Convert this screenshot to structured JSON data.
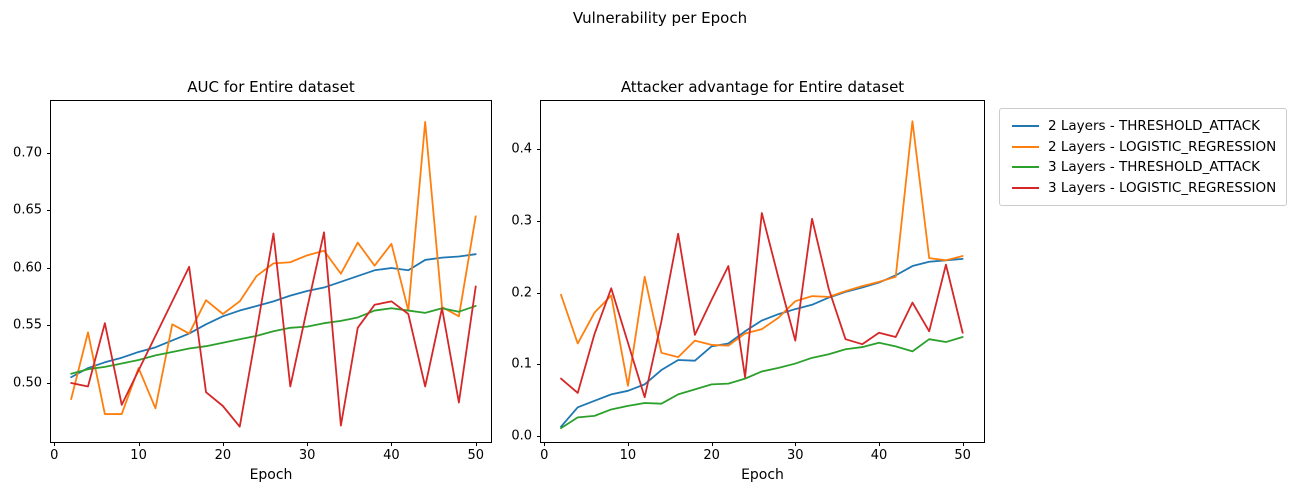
{
  "suptitle": "Vulnerability per Epoch",
  "legend": {
    "entries": [
      {
        "label": "2 Layers - THRESHOLD_ATTACK",
        "color": "#1f77b4"
      },
      {
        "label": "2 Layers - LOGISTIC_REGRESSION",
        "color": "#ff7f0e"
      },
      {
        "label": "3 Layers - THRESHOLD_ATTACK",
        "color": "#2ca02c"
      },
      {
        "label": "3 Layers - LOGISTIC_REGRESSION",
        "color": "#d62728"
      }
    ]
  },
  "chart_data": [
    {
      "type": "line",
      "title": "AUC for Entire dataset",
      "xlabel": "Epoch",
      "grid": false,
      "legend_position": "outside-right-of-figure",
      "x": [
        2,
        4,
        6,
        8,
        10,
        12,
        14,
        16,
        18,
        20,
        22,
        24,
        26,
        28,
        30,
        32,
        34,
        36,
        38,
        40,
        42,
        44,
        46,
        48,
        50
      ],
      "xlim": [
        -0.39,
        51.81
      ],
      "ylim": [
        0.4487,
        0.7452
      ],
      "xticks": [
        0,
        10,
        20,
        30,
        40,
        50
      ],
      "xtick_labels": [
        "0",
        "10",
        "20",
        "30",
        "40",
        "50"
      ],
      "yticks": [
        0.5,
        0.55,
        0.6,
        0.65,
        0.7
      ],
      "ytick_labels": [
        "0.50",
        "0.55",
        "0.60",
        "0.65",
        "0.70"
      ],
      "series": [
        {
          "name": "2 Layers - THRESHOLD_ATTACK",
          "color": "#1f77b4",
          "values": [
            0.505,
            0.513,
            0.518,
            0.522,
            0.527,
            0.531,
            0.537,
            0.543,
            0.551,
            0.558,
            0.563,
            0.567,
            0.571,
            0.576,
            0.58,
            0.583,
            0.588,
            0.593,
            0.598,
            0.6,
            0.598,
            0.607,
            0.609,
            0.61,
            0.612
          ]
        },
        {
          "name": "2 Layers - LOGISTIC_REGRESSION",
          "color": "#ff7f0e",
          "values": [
            0.486,
            0.544,
            0.473,
            0.473,
            0.513,
            0.478,
            0.551,
            0.543,
            0.572,
            0.56,
            0.571,
            0.593,
            0.604,
            0.605,
            0.611,
            0.615,
            0.595,
            0.622,
            0.602,
            0.621,
            0.563,
            0.727,
            0.566,
            0.558,
            0.645
          ]
        },
        {
          "name": "3 Layers - THRESHOLD_ATTACK",
          "color": "#2ca02c",
          "values": [
            0.508,
            0.512,
            0.514,
            0.517,
            0.52,
            0.524,
            0.527,
            0.53,
            0.532,
            0.535,
            0.538,
            0.541,
            0.545,
            0.548,
            0.549,
            0.552,
            0.554,
            0.557,
            0.563,
            0.565,
            0.563,
            0.561,
            0.565,
            0.562,
            0.567
          ]
        },
        {
          "name": "3 Layers - LOGISTIC_REGRESSION",
          "color": "#d62728",
          "values": [
            0.5,
            0.497,
            0.552,
            0.481,
            0.511,
            0.541,
            0.571,
            0.601,
            0.492,
            0.48,
            0.462,
            0.545,
            0.63,
            0.497,
            0.565,
            0.631,
            0.463,
            0.548,
            0.568,
            0.571,
            0.56,
            0.497,
            0.565,
            0.483,
            0.584
          ]
        }
      ]
    },
    {
      "type": "line",
      "title": "Attacker advantage for Entire dataset",
      "xlabel": "Epoch",
      "grid": false,
      "x": [
        2,
        4,
        6,
        8,
        10,
        12,
        14,
        16,
        18,
        20,
        22,
        24,
        26,
        28,
        30,
        32,
        34,
        36,
        38,
        40,
        42,
        44,
        46,
        48,
        50
      ],
      "xlim": [
        -0.39,
        52.55
      ],
      "ylim": [
        -0.0084,
        0.4672
      ],
      "xticks": [
        0,
        10,
        20,
        30,
        40,
        50
      ],
      "xtick_labels": [
        "0",
        "10",
        "20",
        "30",
        "40",
        "50"
      ],
      "yticks": [
        0.0,
        0.1,
        0.2,
        0.3,
        0.4
      ],
      "ytick_labels": [
        "0.0",
        "0.1",
        "0.2",
        "0.3",
        "0.4"
      ],
      "series": [
        {
          "name": "2 Layers - THRESHOLD_ATTACK",
          "color": "#1f77b4",
          "values": [
            0.013,
            0.04,
            0.049,
            0.058,
            0.063,
            0.072,
            0.092,
            0.106,
            0.105,
            0.125,
            0.129,
            0.146,
            0.161,
            0.17,
            0.177,
            0.183,
            0.193,
            0.201,
            0.207,
            0.214,
            0.224,
            0.237,
            0.243,
            0.245,
            0.247
          ]
        },
        {
          "name": "2 Layers - LOGISTIC_REGRESSION",
          "color": "#ff7f0e",
          "values": [
            0.197,
            0.129,
            0.172,
            0.196,
            0.07,
            0.222,
            0.116,
            0.11,
            0.133,
            0.127,
            0.126,
            0.143,
            0.149,
            0.165,
            0.188,
            0.195,
            0.194,
            0.202,
            0.209,
            0.215,
            0.222,
            0.439,
            0.248,
            0.245,
            0.251
          ]
        },
        {
          "name": "3 Layers - THRESHOLD_ATTACK",
          "color": "#2ca02c",
          "values": [
            0.011,
            0.026,
            0.028,
            0.037,
            0.042,
            0.046,
            0.045,
            0.058,
            0.065,
            0.072,
            0.073,
            0.08,
            0.09,
            0.095,
            0.101,
            0.109,
            0.114,
            0.121,
            0.124,
            0.13,
            0.125,
            0.118,
            0.135,
            0.131,
            0.138
          ]
        },
        {
          "name": "3 Layers - LOGISTIC_REGRESSION",
          "color": "#d62728",
          "values": [
            0.08,
            0.06,
            0.142,
            0.206,
            0.13,
            0.054,
            0.16,
            0.282,
            0.141,
            0.19,
            0.237,
            0.082,
            0.311,
            0.22,
            0.133,
            0.303,
            0.205,
            0.135,
            0.128,
            0.144,
            0.138,
            0.186,
            0.146,
            0.239,
            0.144
          ]
        }
      ]
    }
  ]
}
